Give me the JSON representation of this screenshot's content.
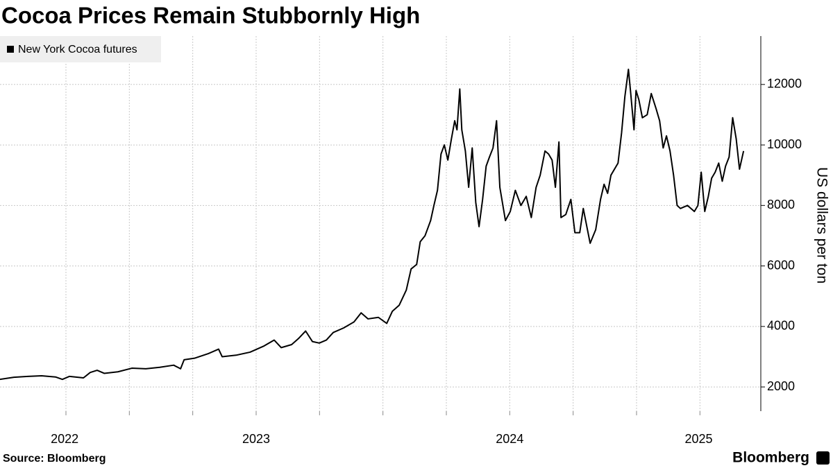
{
  "chart_data": {
    "type": "line",
    "title": "Cocoa Prices Remain Stubbornly High",
    "y_label": "US dollars per ton",
    "source": "Source: Bloomberg",
    "brand": "Bloomberg",
    "x": [
      2022.49,
      2022.545,
      2022.6,
      2022.654,
      2022.709,
      2022.736,
      2022.764,
      2022.819,
      2022.846,
      2022.873,
      2022.901,
      2022.955,
      2023.01,
      2023.065,
      2023.12,
      2023.175,
      2023.202,
      2023.216,
      2023.257,
      2023.311,
      2023.352,
      2023.366,
      2023.421,
      2023.476,
      2023.53,
      2023.571,
      2023.599,
      2023.64,
      2023.667,
      2023.695,
      2023.722,
      2023.749,
      2023.777,
      2023.804,
      2023.845,
      2023.886,
      2023.914,
      2023.941,
      2023.982,
      2024.015,
      2024.037,
      2024.064,
      2024.092,
      2024.111,
      2024.133,
      2024.147,
      2024.166,
      2024.188,
      2024.201,
      2024.215,
      2024.229,
      2024.242,
      2024.256,
      2024.27,
      2024.283,
      2024.292,
      2024.303,
      2024.311,
      2024.325,
      2024.338,
      2024.352,
      2024.366,
      2024.379,
      2024.393,
      2024.407,
      2024.42,
      2024.434,
      2024.448,
      2024.461,
      2024.483,
      2024.502,
      2024.522,
      2024.544,
      2024.565,
      2024.585,
      2024.604,
      2024.62,
      2024.639,
      2024.653,
      2024.667,
      2024.68,
      2024.694,
      2024.702,
      2024.721,
      2024.741,
      2024.757,
      2024.776,
      2024.79,
      2024.804,
      2024.817,
      2024.839,
      2024.858,
      2024.872,
      2024.886,
      2024.899,
      2024.927,
      2024.941,
      2024.954,
      2024.968,
      2024.976,
      2024.99,
      2024.998,
      2025.009,
      2025.023,
      2025.042,
      2025.058,
      2025.077,
      2025.091,
      2025.105,
      2025.118,
      2025.132,
      2025.146,
      2025.16,
      2025.173,
      2025.201,
      2025.228,
      2025.242,
      2025.255,
      2025.269,
      2025.283,
      2025.296,
      2025.31,
      2025.324,
      2025.338,
      2025.351,
      2025.365,
      2025.379,
      2025.393,
      2025.406,
      2025.414,
      2025.422
    ],
    "series": [
      {
        "name": "New York Cocoa futures",
        "color": "#000000",
        "values": [
          2250,
          2320,
          2350,
          2370,
          2330,
          2250,
          2350,
          2300,
          2480,
          2550,
          2450,
          2500,
          2620,
          2600,
          2650,
          2720,
          2600,
          2900,
          2950,
          3100,
          3250,
          3000,
          3050,
          3150,
          3350,
          3550,
          3300,
          3400,
          3600,
          3850,
          3500,
          3450,
          3550,
          3800,
          3950,
          4150,
          4450,
          4250,
          4300,
          4100,
          4500,
          4700,
          5200,
          5900,
          6050,
          6800,
          7000,
          7500,
          8000,
          8500,
          9700,
          10000,
          9500,
          10200,
          10800,
          10500,
          11850,
          10500,
          9800,
          8600,
          9900,
          8100,
          7300,
          8200,
          9300,
          9600,
          9900,
          10800,
          8600,
          7500,
          7800,
          8500,
          8000,
          8300,
          7600,
          8600,
          9000,
          9800,
          9700,
          9500,
          8600,
          10100,
          7600,
          7700,
          8200,
          7100,
          7100,
          7900,
          7300,
          6750,
          7200,
          8200,
          8700,
          8400,
          9000,
          9400,
          10400,
          11600,
          12500,
          11800,
          10500,
          11800,
          11500,
          10900,
          11000,
          11700,
          11200,
          10800,
          9900,
          10300,
          9800,
          9000,
          8000,
          7900,
          8000,
          7800,
          8000,
          9100,
          7800,
          8300,
          8900,
          9100,
          9400,
          8800,
          9300,
          9600,
          10900,
          10200,
          9200,
          9500,
          9800
        ]
      }
    ],
    "xlim": [
      2022.49,
      2025.49
    ],
    "xticks": [
      {
        "value": 2022.745,
        "label": "2022"
      },
      {
        "value": 2023.5,
        "label": "2023"
      },
      {
        "value": 2024.5,
        "label": "2024"
      },
      {
        "value": 2025.245,
        "label": "2025"
      }
    ],
    "xgrid": [
      2022.75,
      2023.0,
      2023.25,
      2023.5,
      2023.75,
      2024.0,
      2024.25,
      2024.5,
      2024.75,
      2025.0,
      2025.25
    ],
    "ylim": [
      1200,
      13600
    ],
    "yticks": [
      2000,
      4000,
      6000,
      8000,
      10000,
      12000
    ],
    "grid": true,
    "legend": "top-left"
  }
}
